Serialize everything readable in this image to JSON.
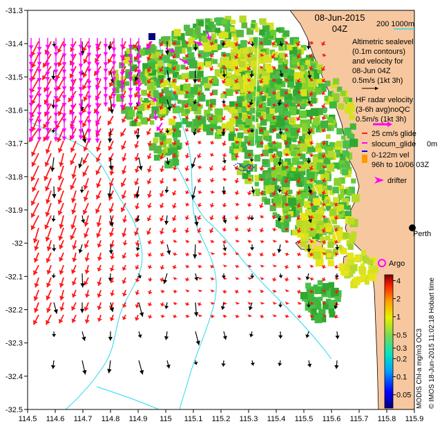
{
  "header": {
    "date": "08-Jun-2015",
    "time": "04Z"
  },
  "bathymetry_legend": {
    "depths": "200  1000m",
    "line_color": "#26d9e8"
  },
  "legend": {
    "altimetry_lines": [
      "Altimetric sealevel",
      "(0.1m contours)",
      "and velocity for",
      "08-Jun 04Z",
      "0.5m/s (1kt 3h)"
    ],
    "hf_radar_lines": [
      "HF radar velocity",
      "(3-6h avg)noQC",
      "0.5m/s (1kt 3h)"
    ],
    "glider_surface": "25 cm/s glide",
    "glider_name": "slocum_glide",
    "glider_depth": "0m",
    "glider_depth_range": "0-122m vel",
    "glider_period": "96h to 10/06 03Z",
    "drifter": "drifter",
    "argo": "Argo",
    "city": "Perth"
  },
  "colorbar": {
    "label": "MODIS Chl-a mg/m3 OC3",
    "ticks": [
      "4",
      "2",
      "1",
      "0.5",
      "0.3",
      "0.2",
      "0.1",
      "0.05"
    ],
    "tick_values": [
      4,
      2,
      1,
      0.5,
      0.3,
      0.2,
      0.1,
      0.05
    ],
    "range": [
      0.03,
      5
    ],
    "scale": "log"
  },
  "credit": "© IMOS 18-Jun-2015 11:02:18 Hobart time",
  "axes": {
    "lon_ticks": [
      "114.5",
      "114.6",
      "114.7",
      "114.8",
      "114.9",
      "115",
      "115.1",
      "115.2",
      "115.3",
      "115.4",
      "115.5",
      "115.6",
      "115.7",
      "115.8",
      "115.9"
    ],
    "lat_ticks": [
      "-31.3",
      "-31.4",
      "-31.5",
      "-31.6",
      "-31.7",
      "-31.8",
      "-31.9",
      "-32",
      "-32.1",
      "-32.2",
      "-32.3",
      "-32.4",
      "-32.5"
    ],
    "lon_range": [
      114.5,
      115.9
    ],
    "lat_range": [
      -32.5,
      -31.3
    ]
  },
  "colors": {
    "land": "#f7c89f",
    "hf_arrow": "#ff1a1a",
    "altimetry_arrow": "#000000",
    "glider_arrow": "#ff00ff",
    "bathy": "#26d9e8",
    "argo": "#ff00ff",
    "glider_track": "#0000ff"
  }
}
